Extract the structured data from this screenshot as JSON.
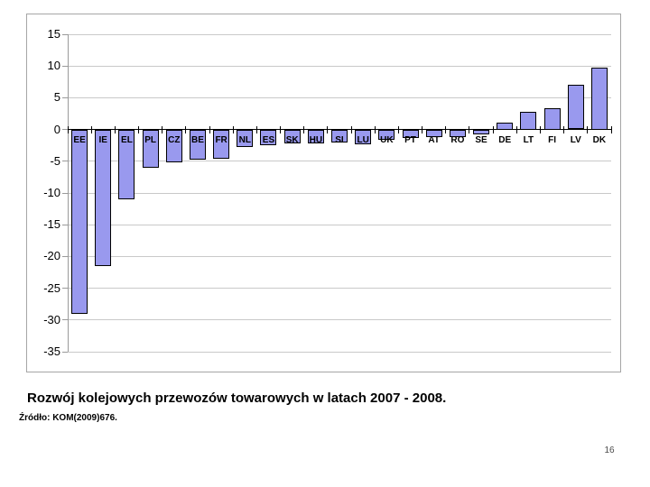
{
  "footer": {
    "title": "Rozwój kolejowych przewozów towarowych w latach 2007 - 2008.",
    "source": "Źródło: KOM(2009)676.",
    "page_number": "16"
  },
  "chart_data": {
    "type": "bar",
    "categories": [
      "EE",
      "IE",
      "EL",
      "PL",
      "CZ",
      "BE",
      "FR",
      "NL",
      "ES",
      "SK",
      "HU",
      "SI",
      "LU",
      "UK",
      "PT",
      "AT",
      "RO",
      "SE",
      "DE",
      "LT",
      "FI",
      "LV",
      "DK"
    ],
    "values": [
      -29.0,
      -21.5,
      -11.0,
      -6.0,
      -5.1,
      -4.7,
      -4.5,
      -2.7,
      -2.4,
      -2.2,
      -2.1,
      -2.0,
      -2.3,
      -1.6,
      -1.3,
      -1.1,
      -1.2,
      -0.7,
      1.1,
      2.8,
      3.4,
      7.0,
      9.8
    ],
    "title": "",
    "xlabel": "",
    "ylabel": "",
    "ylim": [
      -35,
      15
    ],
    "yticks": [
      15,
      10,
      5,
      0,
      -5,
      -10,
      -15,
      -20,
      -25,
      -30,
      -35
    ],
    "grid": true,
    "legend": "none",
    "bar_color": "#9999ee",
    "bar_border_color": "#000000",
    "gridline_color": "#c9c9c9",
    "zero_axis_color": "#000000"
  }
}
